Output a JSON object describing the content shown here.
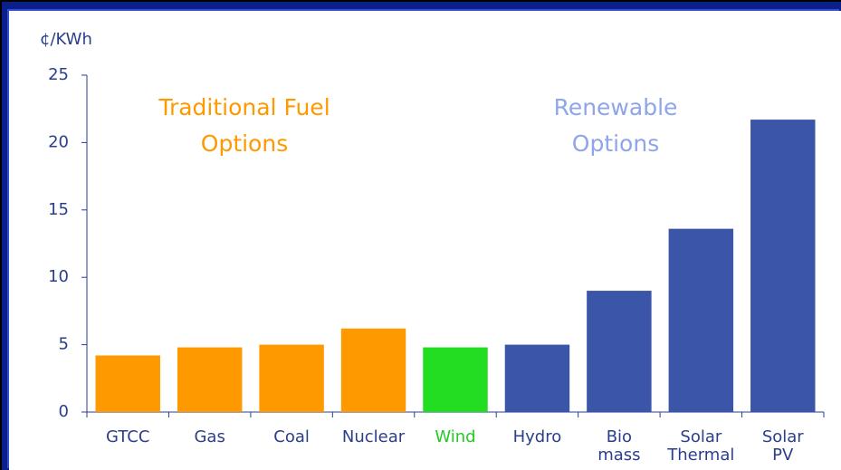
{
  "chart_data": {
    "type": "bar",
    "y_unit_label": "¢/KWh",
    "annotations": [
      {
        "lines": [
          "Traditional Fuel",
          "Options"
        ],
        "color": "#ff9900"
      },
      {
        "lines": [
          "Renewable",
          "Options"
        ],
        "color": "#8ea5ea"
      }
    ],
    "categories": [
      "GTCC",
      "Gas",
      "Coal",
      "Nuclear",
      "Wind",
      "Hydro",
      "Bio\nmass",
      "Solar\nThermal",
      "Solar\nPV"
    ],
    "values": [
      4.2,
      4.8,
      5.0,
      6.2,
      4.8,
      5.0,
      9.0,
      13.6,
      21.7
    ],
    "colors": [
      "#ff9900",
      "#ff9900",
      "#ff9900",
      "#ff9900",
      "#22dd22",
      "#3b55a8",
      "#3b55a8",
      "#3b55a8",
      "#3b55a8"
    ],
    "category_label_colors": [
      "#2b3e8c",
      "#2b3e8c",
      "#2b3e8c",
      "#2b3e8c",
      "#22cc22",
      "#2b3e8c",
      "#2b3e8c",
      "#2b3e8c",
      "#2b3e8c"
    ],
    "ylim": [
      0,
      25
    ],
    "yticks": [
      0,
      5,
      10,
      15,
      20,
      25
    ],
    "grid": false
  }
}
